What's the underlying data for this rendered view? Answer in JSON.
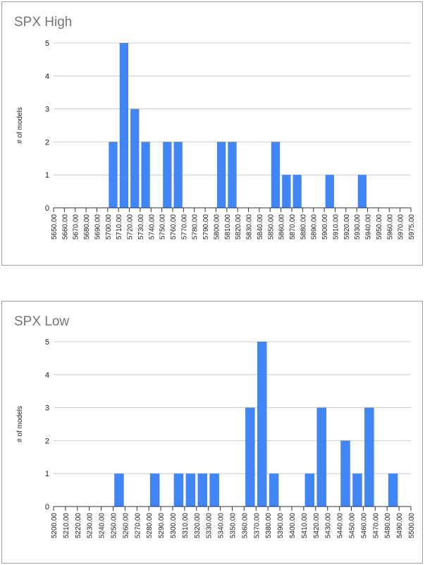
{
  "chart_data": [
    {
      "type": "bar",
      "title": "SPX High",
      "xlabel": "",
      "ylabel": "# of models",
      "ylim": [
        0,
        5
      ],
      "yticks": [
        "0",
        "1",
        "2",
        "3",
        "4",
        "5"
      ],
      "grid": true,
      "bar_color": "#4285f4",
      "categories": [
        "5650.00",
        "5660.00",
        "5670.00",
        "5680.00",
        "5690.00",
        "5700.00",
        "5710.00",
        "5720.00",
        "5730.00",
        "5740.00",
        "5750.00",
        "5760.00",
        "5770.00",
        "5780.00",
        "5790.00",
        "5800.00",
        "5810.00",
        "5820.00",
        "5830.00",
        "5840.00",
        "5850.00",
        "5860.00",
        "5870.00",
        "5880.00",
        "5890.00",
        "5900.00",
        "5910.00",
        "5920.00",
        "5930.00",
        "5940.00",
        "5950.00",
        "5960.00",
        "5970.00",
        "5975.00"
      ],
      "values": [
        0,
        0,
        0,
        0,
        0,
        2,
        5,
        3,
        2,
        0,
        2,
        2,
        0,
        0,
        0,
        2,
        2,
        0,
        0,
        0,
        2,
        1,
        1,
        0,
        0,
        1,
        0,
        0,
        1,
        0,
        0,
        0,
        0,
        0
      ]
    },
    {
      "type": "bar",
      "title": "SPX Low",
      "xlabel": "",
      "ylabel": "# of models",
      "ylim": [
        0,
        5
      ],
      "yticks": [
        "0",
        "1",
        "2",
        "3",
        "4",
        "5"
      ],
      "grid": true,
      "bar_color": "#4285f4",
      "categories": [
        "5200.00",
        "5210.00",
        "5220.00",
        "5230.00",
        "5240.00",
        "5250.00",
        "5260.00",
        "5270.00",
        "5280.00",
        "5290.00",
        "5300.00",
        "5310.00",
        "5320.00",
        "5330.00",
        "5340.00",
        "5350.00",
        "5360.00",
        "5370.00",
        "5380.00",
        "5390.00",
        "5400.00",
        "5410.00",
        "5420.00",
        "5430.00",
        "5440.00",
        "5450.00",
        "5460.00",
        "5470.00",
        "5480.00",
        "5490.00",
        "5500.00"
      ],
      "values": [
        0,
        0,
        0,
        0,
        0,
        1,
        0,
        0,
        1,
        0,
        1,
        1,
        1,
        1,
        0,
        0,
        3,
        5,
        1,
        0,
        0,
        1,
        3,
        0,
        2,
        1,
        3,
        0,
        1,
        0,
        0
      ]
    }
  ]
}
